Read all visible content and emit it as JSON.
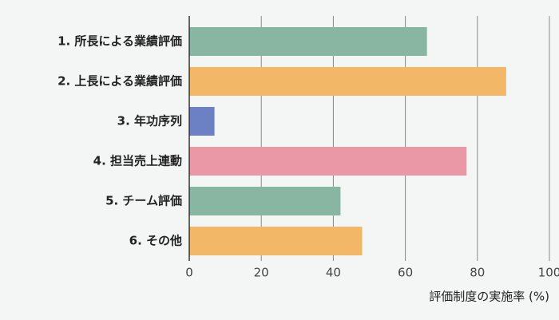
{
  "chart_data": {
    "type": "barh",
    "categories": [
      "1. 所長による業績評価",
      "2. 上長による業績評価",
      "3. 年功序列",
      "4. 担当売上連動",
      "5. チーム評価",
      "6. その他"
    ],
    "values": [
      66,
      88,
      7,
      77,
      42,
      48
    ],
    "colors": [
      "#88b6a2",
      "#f2b868",
      "#6c80c4",
      "#ea98a5",
      "#88b6a2",
      "#f2b868"
    ],
    "xlim": [
      0,
      100
    ],
    "xticks": [
      0,
      20,
      40,
      60,
      80,
      100
    ],
    "grid": true,
    "x_label": "評価制度の実施率 (%)"
  }
}
